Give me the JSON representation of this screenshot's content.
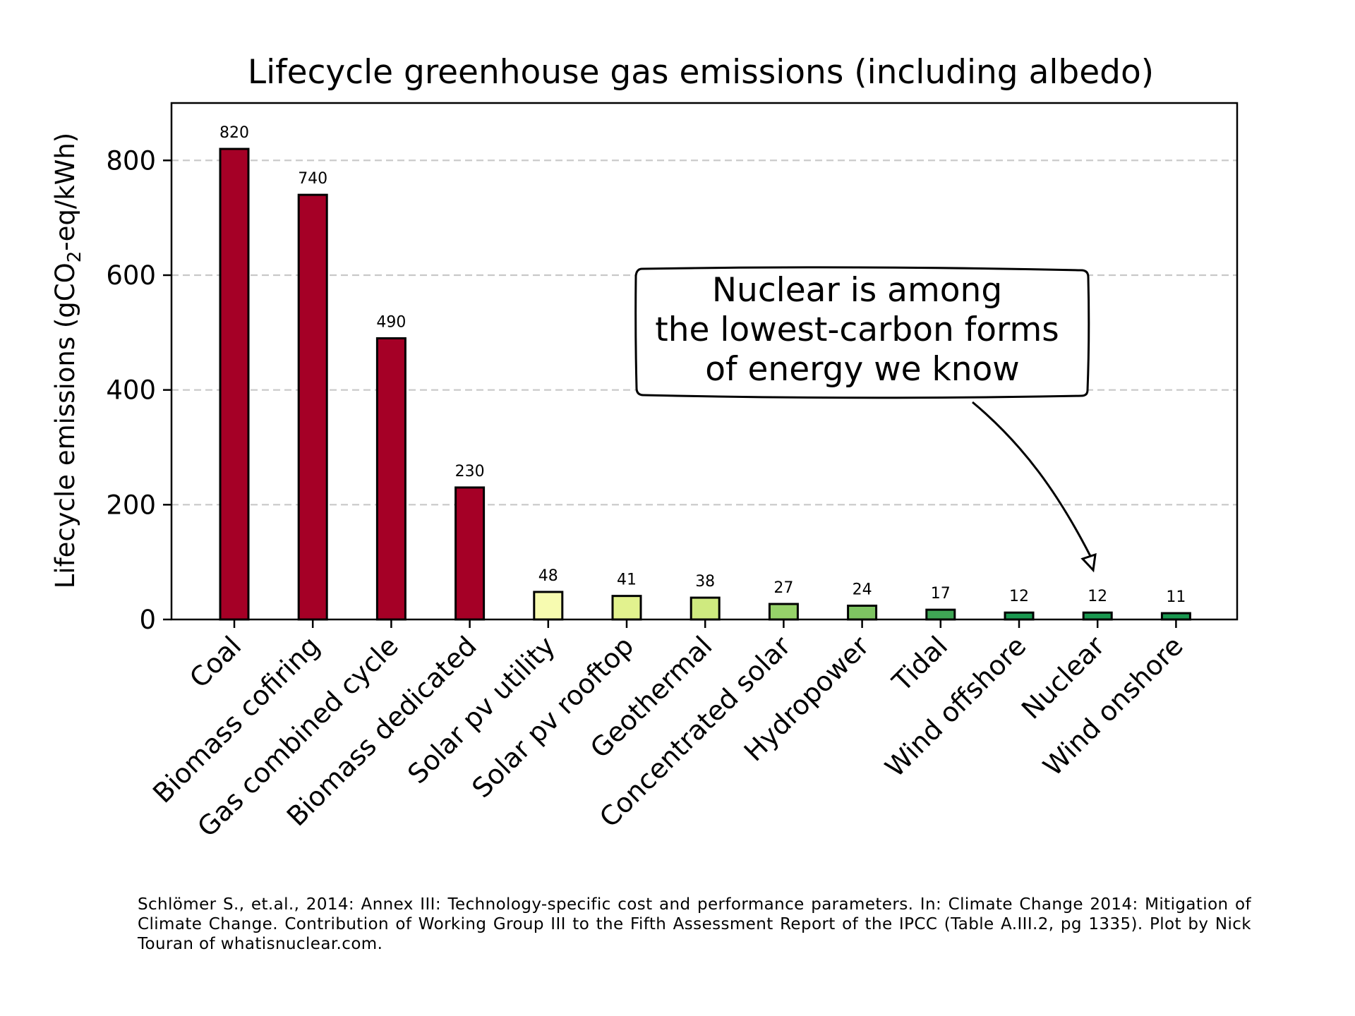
{
  "chart_data": {
    "type": "bar",
    "title": "Lifecycle greenhouse gas emissions  (including albedo)",
    "ylabel_parts": [
      "Lifecycle emissions (gCO",
      "2",
      "-eq/kWh)"
    ],
    "ylim": [
      0,
      900
    ],
    "yticks": [
      0,
      200,
      400,
      600,
      800
    ],
    "grid": "horizontal dashed",
    "categories": [
      "Coal",
      "Biomass cofiring",
      "Gas combined cycle",
      "Biomass dedicated",
      "Solar pv utility",
      "Solar pv rooftop",
      "Geothermal",
      "Concentrated solar",
      "Hydropower",
      "Tidal",
      "Wind offshore",
      "Nuclear",
      "Wind onshore"
    ],
    "values": [
      820,
      740,
      490,
      230,
      48,
      41,
      38,
      27,
      24,
      17,
      12,
      12,
      11
    ],
    "colors": [
      "#a50026",
      "#a50026",
      "#a50026",
      "#a50026",
      "#f7fbb0",
      "#e2f28e",
      "#cfea7f",
      "#96d269",
      "#7ec462",
      "#3fa655",
      "#1a9850",
      "#1a9850",
      "#1a9850"
    ],
    "annotation": {
      "lines": [
        "Nuclear is among",
        "the lowest-carbon forms",
        "of energy we know"
      ],
      "points_to": "Nuclear"
    }
  },
  "citation": "Schlömer S., et.al., 2014:  Annex III:  Technology-specific  cost  and  performance  parameters.  In:  Climate  Change  2014: Mitigation  of  Climate  Change.  Contribution  of  Working  Group  III  to  the  Fifth  Assessment  Report  of  the  IPCC (Table A.III.2, pg 1335). Plot by Nick Touran of whatisnuclear.com."
}
